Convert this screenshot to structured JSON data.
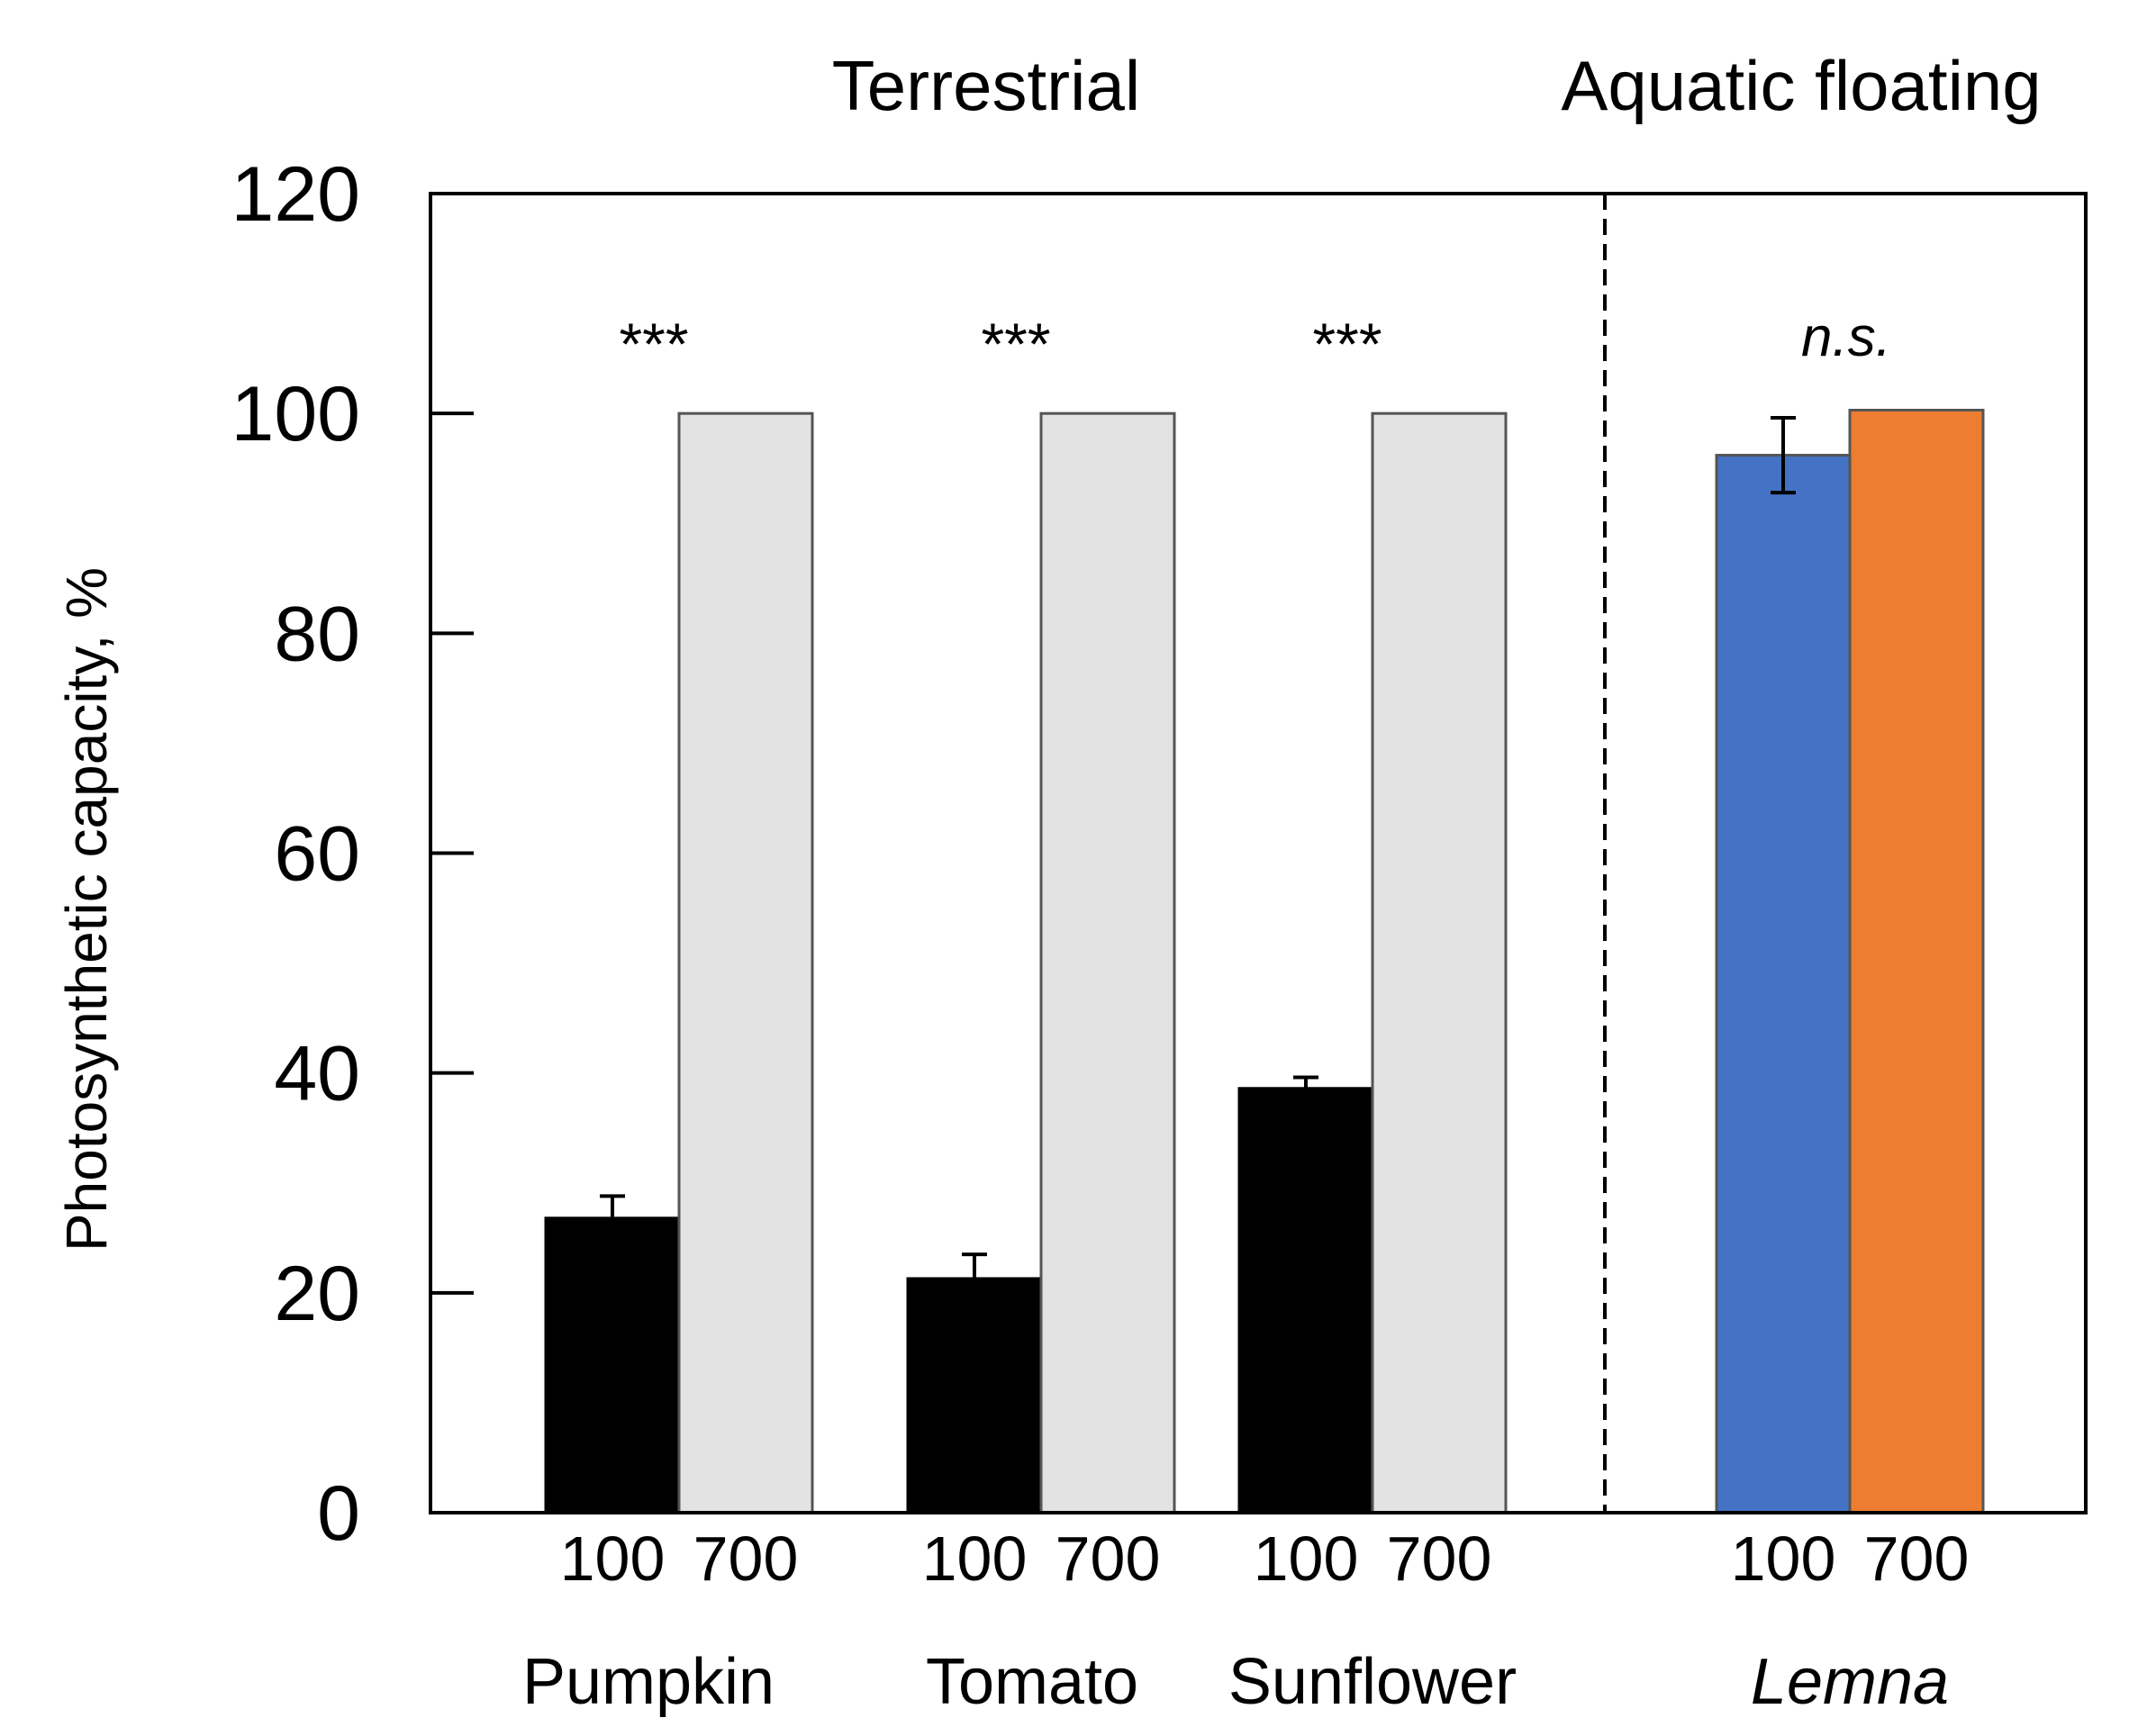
{
  "chart_data": {
    "type": "bar",
    "ylabel": "Photosynthetic capacity, %",
    "ylim": [
      0,
      120
    ],
    "yticks": [
      "0",
      "20",
      "40",
      "60",
      "80",
      "100",
      "120"
    ],
    "sections": [
      {
        "label": "Terrestrial"
      },
      {
        "label": "Aquatic floating"
      }
    ],
    "groups": [
      {
        "name": "Pumpkin",
        "italic": false,
        "section": 0,
        "significance": "***",
        "sig_italic": false,
        "bars": [
          {
            "label": "100",
            "value": 26.8,
            "error": 2.0,
            "color": "#000000"
          },
          {
            "label": "700",
            "value": 100,
            "error": null,
            "color": "#e3e3e3"
          }
        ]
      },
      {
        "name": "Tomato",
        "italic": false,
        "section": 0,
        "significance": "***",
        "sig_italic": false,
        "bars": [
          {
            "label": "100",
            "value": 21.3,
            "error": 2.2,
            "color": "#000000"
          },
          {
            "label": "700",
            "value": 100,
            "error": null,
            "color": "#e3e3e3"
          }
        ]
      },
      {
        "name": "Sunflower",
        "italic": false,
        "section": 0,
        "significance": "***",
        "sig_italic": false,
        "bars": [
          {
            "label": "100",
            "value": 38.6,
            "error": 1.0,
            "color": "#000000"
          },
          {
            "label": "700",
            "value": 100,
            "error": null,
            "color": "#e3e3e3"
          }
        ]
      },
      {
        "name": "Lemna",
        "italic": true,
        "section": 1,
        "significance": "n.s.",
        "sig_italic": true,
        "bars": [
          {
            "label": "100",
            "value": 96.2,
            "error": 3.4,
            "color": "#4472c4"
          },
          {
            "label": "700",
            "value": 100.3,
            "error": null,
            "color": "#ed7d31"
          }
        ]
      }
    ]
  }
}
